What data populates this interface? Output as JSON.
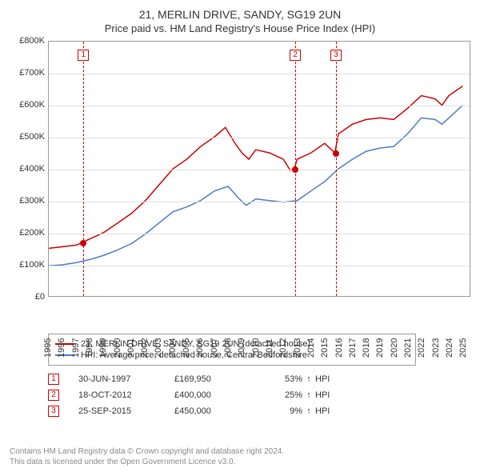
{
  "title": "21, MERLIN DRIVE, SANDY, SG19 2UN",
  "subtitle": "Price paid vs. HM Land Registry's House Price Index (HPI)",
  "chart": {
    "type": "line",
    "ylim": [
      0,
      800000
    ],
    "ytick_step": 100000,
    "ytick_labels": [
      "£0",
      "£100K",
      "£200K",
      "£300K",
      "£400K",
      "£500K",
      "£600K",
      "£700K",
      "£800K"
    ],
    "xlim": [
      1995,
      2025.5
    ],
    "xtick_years": [
      1995,
      1996,
      1997,
      1998,
      1999,
      2000,
      2001,
      2002,
      2003,
      2004,
      2005,
      2006,
      2007,
      2008,
      2009,
      2010,
      2011,
      2012,
      2013,
      2014,
      2015,
      2016,
      2017,
      2018,
      2019,
      2020,
      2021,
      2022,
      2023,
      2024,
      2025
    ],
    "grid_color": "#e0e0e0",
    "background_color": "#ffffff",
    "border_color": "#999999",
    "series": [
      {
        "name": "price_paid",
        "color": "#cc0000",
        "line_width": 1.5,
        "points": [
          [
            1995,
            150000
          ],
          [
            1996,
            155000
          ],
          [
            1997,
            160000
          ],
          [
            1997.5,
            169950
          ],
          [
            1998,
            180000
          ],
          [
            1999,
            200000
          ],
          [
            2000,
            230000
          ],
          [
            2001,
            260000
          ],
          [
            2002,
            300000
          ],
          [
            2003,
            350000
          ],
          [
            2004,
            400000
          ],
          [
            2005,
            430000
          ],
          [
            2006,
            470000
          ],
          [
            2007,
            500000
          ],
          [
            2007.8,
            530000
          ],
          [
            2008.5,
            480000
          ],
          [
            2009,
            450000
          ],
          [
            2009.5,
            430000
          ],
          [
            2010,
            460000
          ],
          [
            2011,
            450000
          ],
          [
            2012,
            430000
          ],
          [
            2012.5,
            395000
          ],
          [
            2012.8,
            400000
          ],
          [
            2013,
            430000
          ],
          [
            2014,
            450000
          ],
          [
            2015,
            480000
          ],
          [
            2015.73,
            450000
          ],
          [
            2016,
            510000
          ],
          [
            2017,
            540000
          ],
          [
            2018,
            555000
          ],
          [
            2019,
            560000
          ],
          [
            2020,
            555000
          ],
          [
            2021,
            590000
          ],
          [
            2022,
            630000
          ],
          [
            2023,
            620000
          ],
          [
            2023.5,
            600000
          ],
          [
            2024,
            630000
          ],
          [
            2025,
            660000
          ]
        ]
      },
      {
        "name": "hpi",
        "color": "#4a7cc4",
        "line_width": 1.5,
        "points": [
          [
            1995,
            95000
          ],
          [
            1996,
            98000
          ],
          [
            1997,
            105000
          ],
          [
            1998,
            115000
          ],
          [
            1999,
            128000
          ],
          [
            2000,
            145000
          ],
          [
            2001,
            165000
          ],
          [
            2002,
            195000
          ],
          [
            2003,
            230000
          ],
          [
            2004,
            265000
          ],
          [
            2005,
            280000
          ],
          [
            2006,
            300000
          ],
          [
            2007,
            330000
          ],
          [
            2008,
            345000
          ],
          [
            2008.7,
            310000
          ],
          [
            2009.3,
            285000
          ],
          [
            2010,
            305000
          ],
          [
            2011,
            300000
          ],
          [
            2012,
            295000
          ],
          [
            2013,
            300000
          ],
          [
            2014,
            330000
          ],
          [
            2015,
            360000
          ],
          [
            2016,
            400000
          ],
          [
            2017,
            430000
          ],
          [
            2018,
            455000
          ],
          [
            2019,
            465000
          ],
          [
            2020,
            470000
          ],
          [
            2021,
            510000
          ],
          [
            2022,
            560000
          ],
          [
            2023,
            555000
          ],
          [
            2023.5,
            540000
          ],
          [
            2024,
            560000
          ],
          [
            2025,
            600000
          ]
        ]
      }
    ],
    "sale_markers": [
      {
        "n": "1",
        "year": 1997.5,
        "price": 169950,
        "dash_color": "#cc0000"
      },
      {
        "n": "2",
        "year": 2012.8,
        "price": 400000,
        "dash_color": "#cc0000"
      },
      {
        "n": "3",
        "year": 2015.73,
        "price": 450000,
        "dash_color": "#cc0000"
      }
    ],
    "dot_color": "#cc0000"
  },
  "legend": {
    "items": [
      {
        "color": "#cc0000",
        "label": "21, MERLIN DRIVE, SANDY, SG19 2UN (detached house)"
      },
      {
        "color": "#4a7cc4",
        "label": "HPI: Average price, detached house, Central Bedfordshire"
      }
    ]
  },
  "sales": [
    {
      "n": "1",
      "date": "30-JUN-1997",
      "price": "£169,950",
      "pct": "53%",
      "arrow": "↑",
      "hpi": "HPI"
    },
    {
      "n": "2",
      "date": "18-OCT-2012",
      "price": "£400,000",
      "pct": "25%",
      "arrow": "↑",
      "hpi": "HPI"
    },
    {
      "n": "3",
      "date": "25-SEP-2015",
      "price": "£450,000",
      "pct": "9%",
      "arrow": "↑",
      "hpi": "HPI"
    }
  ],
  "footer": {
    "line1": "Contains HM Land Registry data © Crown copyright and database right 2024.",
    "line2": "This data is licensed under the Open Government Licence v3.0."
  }
}
